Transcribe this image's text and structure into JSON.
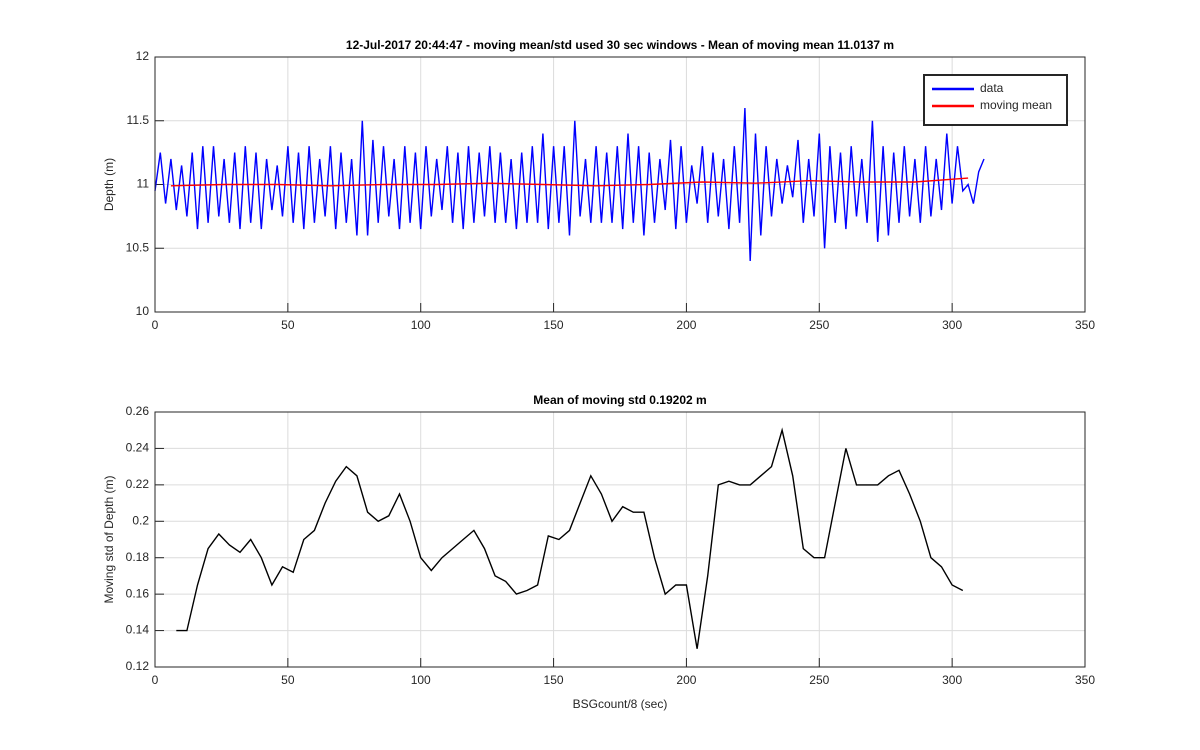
{
  "chart_data": [
    {
      "type": "line",
      "title": "12-Jul-2017 20:44:47 - moving mean/std used 30 sec windows - Mean of moving mean 11.0137 m",
      "ylabel": "Depth (m)",
      "xlim": [
        0,
        350
      ],
      "xticks": [
        0,
        50,
        100,
        150,
        200,
        250,
        300,
        350
      ],
      "ylim": [
        10,
        12
      ],
      "yticks": [
        10,
        10.5,
        11,
        11.5,
        12
      ],
      "grid": true,
      "legend": "northeast",
      "series": [
        {
          "name": "data",
          "color": "#0000ff",
          "x": [
            0,
            2,
            4,
            6,
            8,
            10,
            12,
            14,
            16,
            18,
            20,
            22,
            24,
            26,
            28,
            30,
            32,
            34,
            36,
            38,
            40,
            42,
            44,
            46,
            48,
            50,
            52,
            54,
            56,
            58,
            60,
            62,
            64,
            66,
            68,
            70,
            72,
            74,
            76,
            78,
            80,
            82,
            84,
            86,
            88,
            90,
            92,
            94,
            96,
            98,
            100,
            102,
            104,
            106,
            108,
            110,
            112,
            114,
            116,
            118,
            120,
            122,
            124,
            126,
            128,
            130,
            132,
            134,
            136,
            138,
            140,
            142,
            144,
            146,
            148,
            150,
            152,
            154,
            156,
            158,
            160,
            162,
            164,
            166,
            168,
            170,
            172,
            174,
            176,
            178,
            180,
            182,
            184,
            186,
            188,
            190,
            192,
            194,
            196,
            198,
            200,
            202,
            204,
            206,
            208,
            210,
            212,
            214,
            216,
            218,
            220,
            222,
            224,
            226,
            228,
            230,
            232,
            234,
            236,
            238,
            240,
            242,
            244,
            246,
            248,
            250,
            252,
            254,
            256,
            258,
            260,
            262,
            264,
            266,
            268,
            270,
            272,
            274,
            276,
            278,
            280,
            282,
            284,
            286,
            288,
            290,
            292,
            294,
            296,
            298,
            300,
            302,
            304,
            306,
            308,
            310,
            312
          ],
          "values": [
            10.95,
            11.25,
            10.85,
            11.2,
            10.8,
            11.15,
            10.75,
            11.25,
            10.65,
            11.3,
            10.7,
            11.3,
            10.75,
            11.2,
            10.7,
            11.25,
            10.65,
            11.3,
            10.7,
            11.25,
            10.65,
            11.2,
            10.8,
            11.15,
            10.75,
            11.3,
            10.7,
            11.25,
            10.65,
            11.3,
            10.7,
            11.2,
            10.75,
            11.3,
            10.65,
            11.25,
            10.7,
            11.2,
            10.6,
            11.5,
            10.6,
            11.35,
            10.7,
            11.3,
            10.75,
            11.2,
            10.65,
            11.3,
            10.7,
            11.25,
            10.65,
            11.3,
            10.75,
            11.2,
            10.8,
            11.3,
            10.7,
            11.25,
            10.65,
            11.3,
            10.7,
            11.25,
            10.75,
            11.3,
            10.7,
            11.25,
            10.7,
            11.2,
            10.65,
            11.25,
            10.7,
            11.3,
            10.7,
            11.4,
            10.65,
            11.3,
            10.7,
            11.3,
            10.6,
            11.5,
            10.75,
            11.2,
            10.7,
            11.3,
            10.7,
            11.25,
            10.7,
            11.3,
            10.65,
            11.4,
            10.7,
            11.3,
            10.6,
            11.25,
            10.7,
            11.2,
            10.8,
            11.35,
            10.65,
            11.3,
            10.7,
            11.15,
            10.85,
            11.3,
            10.7,
            11.25,
            10.75,
            11.2,
            10.65,
            11.3,
            10.7,
            11.6,
            10.4,
            11.4,
            10.6,
            11.3,
            10.75,
            11.2,
            10.85,
            11.15,
            10.9,
            11.35,
            10.7,
            11.2,
            10.75,
            11.4,
            10.5,
            11.3,
            10.7,
            11.25,
            10.65,
            11.3,
            10.75,
            11.2,
            10.7,
            11.5,
            10.55,
            11.3,
            10.6,
            11.25,
            10.7,
            11.3,
            10.75,
            11.2,
            10.7,
            11.3,
            10.75,
            11.2,
            10.8,
            11.4,
            10.85,
            11.3,
            10.95,
            11.0,
            10.85,
            11.1,
            11.2
          ]
        },
        {
          "name": "moving mean",
          "color": "#ff0000",
          "x": [
            6,
            26,
            46,
            66,
            86,
            106,
            126,
            146,
            166,
            186,
            206,
            226,
            246,
            266,
            286,
            306
          ],
          "values": [
            10.99,
            11.0,
            11.0,
            10.99,
            11.0,
            11.0,
            11.01,
            11.0,
            10.99,
            11.0,
            11.02,
            11.01,
            11.03,
            11.02,
            11.02,
            11.05
          ]
        }
      ]
    },
    {
      "type": "line",
      "title": "Mean of moving std 0.19202 m",
      "xlabel": "BSGcount/8 (sec)",
      "ylabel": "Moving std of Depth (m)",
      "xlim": [
        0,
        350
      ],
      "xticks": [
        0,
        50,
        100,
        150,
        200,
        250,
        300,
        350
      ],
      "ylim": [
        0.12,
        0.26
      ],
      "yticks": [
        0.12,
        0.14,
        0.16,
        0.18,
        0.2,
        0.22,
        0.24,
        0.26
      ],
      "grid": true,
      "series": [
        {
          "color": "#000000",
          "x": [
            8,
            12,
            16,
            20,
            24,
            28,
            32,
            36,
            40,
            44,
            48,
            52,
            56,
            60,
            64,
            68,
            72,
            76,
            80,
            84,
            88,
            92,
            96,
            100,
            104,
            108,
            112,
            116,
            120,
            124,
            128,
            132,
            136,
            140,
            144,
            148,
            152,
            156,
            160,
            164,
            168,
            172,
            176,
            180,
            184,
            188,
            192,
            196,
            200,
            204,
            208,
            212,
            216,
            220,
            224,
            228,
            232,
            236,
            240,
            244,
            248,
            252,
            256,
            260,
            264,
            268,
            272,
            276,
            280,
            284,
            288,
            292,
            296,
            300,
            304
          ],
          "values": [
            0.14,
            0.14,
            0.165,
            0.185,
            0.193,
            0.187,
            0.183,
            0.19,
            0.18,
            0.165,
            0.175,
            0.172,
            0.19,
            0.195,
            0.21,
            0.222,
            0.23,
            0.225,
            0.205,
            0.2,
            0.203,
            0.215,
            0.2,
            0.18,
            0.173,
            0.18,
            0.185,
            0.19,
            0.195,
            0.185,
            0.17,
            0.167,
            0.16,
            0.162,
            0.165,
            0.192,
            0.19,
            0.195,
            0.21,
            0.225,
            0.215,
            0.2,
            0.208,
            0.205,
            0.205,
            0.18,
            0.16,
            0.165,
            0.165,
            0.13,
            0.17,
            0.22,
            0.222,
            0.22,
            0.22,
            0.225,
            0.23,
            0.25,
            0.225,
            0.185,
            0.18,
            0.18,
            0.21,
            0.24,
            0.22,
            0.22,
            0.22,
            0.225,
            0.228,
            0.215,
            0.2,
            0.18,
            0.175,
            0.165,
            0.162
          ]
        }
      ]
    }
  ]
}
